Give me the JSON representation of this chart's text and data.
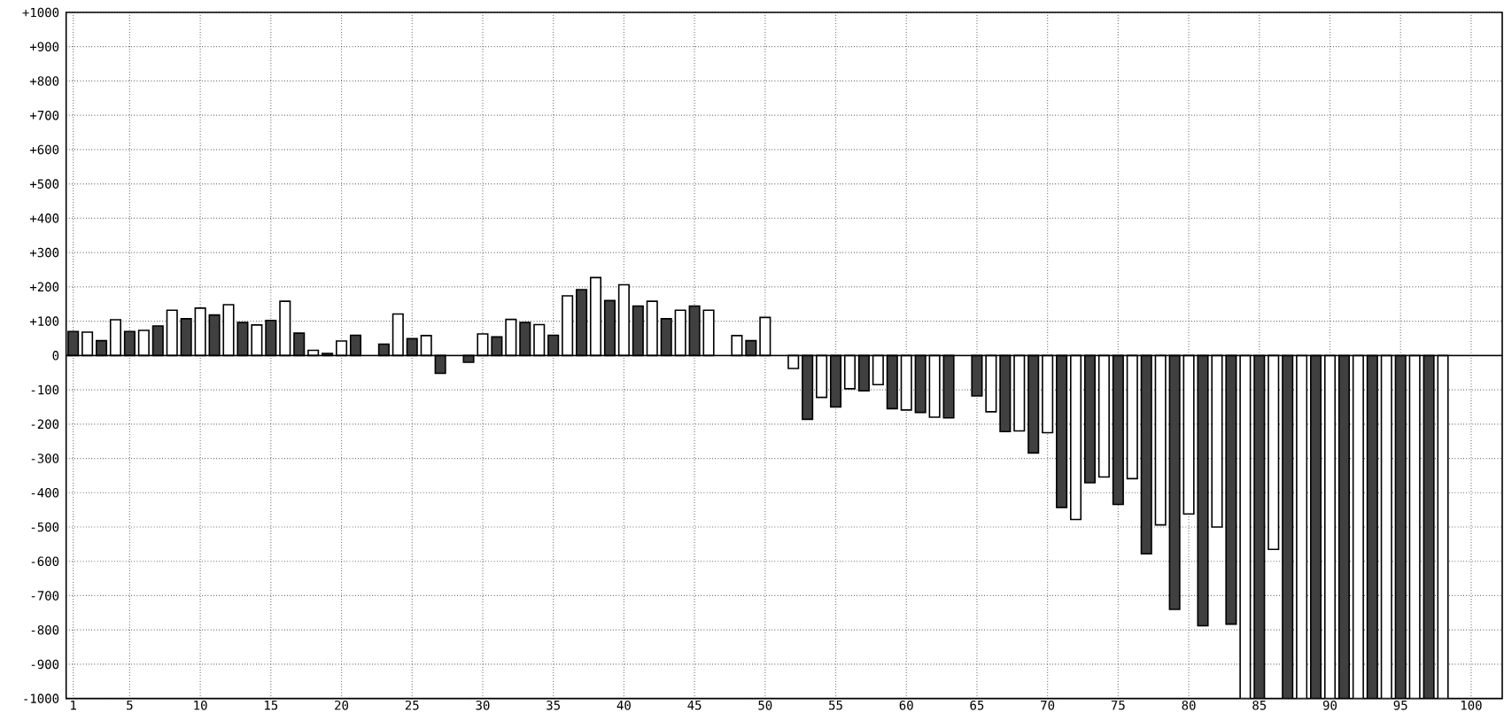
{
  "chart_data": {
    "type": "bar",
    "x": [
      1,
      2,
      3,
      4,
      5,
      6,
      7,
      8,
      9,
      10,
      11,
      12,
      13,
      14,
      15,
      16,
      17,
      18,
      19,
      20,
      21,
      22,
      23,
      24,
      25,
      26,
      27,
      28,
      29,
      30,
      31,
      32,
      33,
      34,
      35,
      36,
      37,
      38,
      39,
      40,
      41,
      42,
      43,
      44,
      45,
      46,
      47,
      48,
      49,
      50,
      51,
      52,
      53,
      54,
      55,
      56,
      57,
      58,
      59,
      60,
      61,
      62,
      63,
      64,
      65,
      66,
      67,
      68,
      69,
      70,
      71,
      72,
      73,
      74,
      75,
      76,
      77,
      78,
      79,
      80,
      81,
      82,
      83,
      84,
      85,
      86,
      87,
      88,
      89,
      90,
      91,
      92,
      93,
      94,
      95,
      96,
      97,
      98
    ],
    "values": [
      70,
      68,
      43,
      104,
      70,
      73,
      86,
      132,
      107,
      138,
      118,
      148,
      96,
      89,
      102,
      158,
      65,
      15,
      6,
      42,
      59,
      null,
      33,
      121,
      49,
      58,
      -52,
      null,
      -20,
      63,
      54,
      105,
      96,
      90,
      59,
      174,
      192,
      227,
      160,
      206,
      144,
      158,
      107,
      132,
      144,
      132,
      null,
      58,
      43,
      111,
      null,
      -38,
      -186,
      -122,
      -150,
      -97,
      -103,
      -85,
      -155,
      -159,
      -166,
      -180,
      -182,
      null,
      -118,
      -164,
      -222,
      -220,
      -284,
      -225,
      -443,
      -478,
      -371,
      -354,
      -434,
      -359,
      -578,
      -494,
      -740,
      -462,
      -788,
      -500,
      -783,
      -1000,
      -1000,
      -565,
      -1000,
      -1000,
      -1000,
      -1000,
      -1000,
      -1000,
      -1000,
      -1000,
      -1000,
      -1000,
      -1000,
      -1000
    ],
    "colors": [
      "#404040",
      "#ffffff",
      "#404040",
      "#ffffff",
      "#404040",
      "#ffffff",
      "#404040",
      "#ffffff",
      "#404040",
      "#ffffff",
      "#404040",
      "#ffffff",
      "#404040",
      "#ffffff",
      "#404040",
      "#ffffff",
      "#404040",
      "#ffffff",
      "#404040",
      "#ffffff",
      "#404040",
      "#ffffff",
      "#404040",
      "#ffffff",
      "#404040",
      "#ffffff",
      "#404040",
      "#ffffff",
      "#404040",
      "#ffffff",
      "#404040",
      "#ffffff",
      "#404040",
      "#ffffff",
      "#404040",
      "#ffffff",
      "#404040",
      "#ffffff",
      "#404040",
      "#ffffff",
      "#404040",
      "#ffffff",
      "#404040",
      "#ffffff",
      "#404040",
      "#ffffff",
      "#404040",
      "#ffffff",
      "#404040",
      "#ffffff",
      "#404040",
      "#ffffff",
      "#404040",
      "#ffffff",
      "#404040",
      "#ffffff",
      "#404040",
      "#ffffff",
      "#404040",
      "#ffffff",
      "#404040",
      "#ffffff",
      "#404040",
      "#ffffff",
      "#404040",
      "#ffffff",
      "#404040",
      "#ffffff",
      "#404040",
      "#ffffff",
      "#404040",
      "#ffffff",
      "#404040",
      "#ffffff",
      "#404040",
      "#ffffff",
      "#404040",
      "#ffffff",
      "#404040",
      "#ffffff",
      "#404040",
      "#ffffff",
      "#404040",
      "#ffffff",
      "#404040",
      "#ffffff",
      "#404040",
      "#ffffff",
      "#404040",
      "#ffffff",
      "#404040",
      "#ffffff",
      "#404040",
      "#ffffff",
      "#404040",
      "#ffffff",
      "#404040",
      "#ffffff"
    ],
    "xlim": [
      0.5,
      102.2
    ],
    "ylim": [
      -1000,
      1000
    ],
    "xticks": [
      1,
      5,
      10,
      15,
      20,
      25,
      30,
      35,
      40,
      45,
      50,
      55,
      60,
      65,
      70,
      75,
      80,
      85,
      90,
      95,
      100
    ],
    "yticks": [
      {
        "value": -1000,
        "label": "-1000"
      },
      {
        "value": -900,
        "label": "-900"
      },
      {
        "value": -800,
        "label": "-800"
      },
      {
        "value": -700,
        "label": "-700"
      },
      {
        "value": -600,
        "label": "-600"
      },
      {
        "value": -500,
        "label": "-500"
      },
      {
        "value": -400,
        "label": "-400"
      },
      {
        "value": -300,
        "label": "-300"
      },
      {
        "value": -200,
        "label": "-200"
      },
      {
        "value": -100,
        "label": "-100"
      },
      0,
      {
        "value": 100,
        "label": "+100"
      },
      {
        "value": 200,
        "label": "+200"
      },
      {
        "value": 300,
        "label": "+300"
      },
      {
        "value": 400,
        "label": "+400"
      },
      {
        "value": 500,
        "label": "+500"
      },
      {
        "value": 600,
        "label": "+600"
      },
      {
        "value": 700,
        "label": "+700"
      },
      {
        "value": 800,
        "label": "+800"
      },
      {
        "value": 900,
        "label": "+900"
      },
      {
        "value": 1000,
        "label": "+1000"
      }
    ],
    "grid": true
  }
}
